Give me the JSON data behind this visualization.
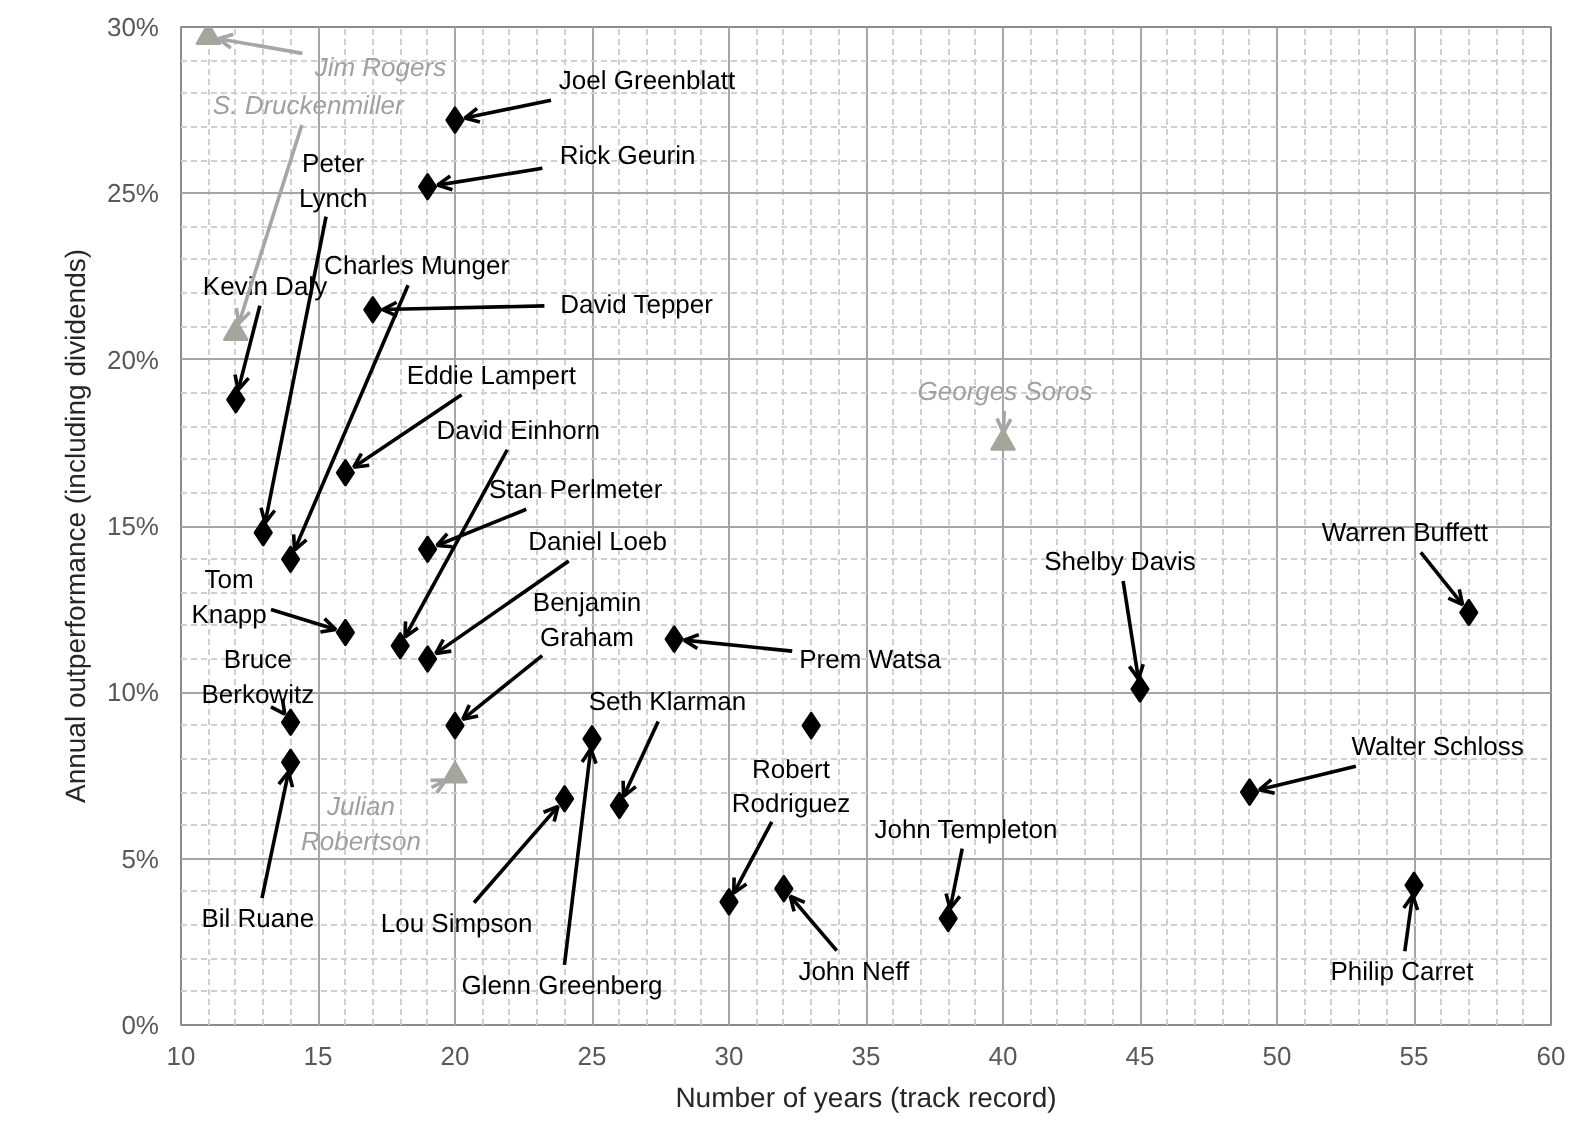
{
  "chart_data": {
    "type": "scatter",
    "xlabel": "Number of years (track record)",
    "ylabel": "Annual outperformance (including dividends)",
    "xlim": [
      10,
      60
    ],
    "ylim": [
      0,
      30
    ],
    "xticks": [
      10,
      15,
      20,
      25,
      30,
      35,
      40,
      45,
      50,
      55,
      60
    ],
    "yticks": [
      {
        "value": 0,
        "label": "0%"
      },
      {
        "value": 5,
        "label": "5%"
      },
      {
        "value": 10,
        "label": "10%"
      },
      {
        "value": 15,
        "label": "15%"
      },
      {
        "value": 20,
        "label": "20%"
      },
      {
        "value": 25,
        "label": "25%"
      },
      {
        "value": 30,
        "label": "30%"
      }
    ],
    "grid": true,
    "series": [
      {
        "color": "#000000",
        "marker": "diamond",
        "x": [
          20,
          19,
          17,
          12,
          16,
          13,
          14,
          18,
          19,
          19,
          16,
          20,
          28,
          26,
          14,
          30,
          38,
          45,
          57,
          49,
          14,
          24,
          32,
          25,
          55,
          33
        ],
        "values": [
          27.2,
          25.2,
          21.5,
          18.8,
          16.6,
          14.8,
          14.0,
          11.4,
          14.3,
          11.0,
          11.8,
          9.0,
          11.6,
          6.6,
          9.1,
          3.7,
          3.2,
          10.1,
          12.4,
          7.0,
          7.9,
          6.8,
          4.1,
          8.6,
          4.2,
          9.0
        ]
      },
      {
        "color": "#a3a69b",
        "marker": "triangle",
        "x": [
          11,
          12,
          20,
          40
        ],
        "values": [
          29.7,
          20.8,
          7.5,
          17.5
        ]
      }
    ],
    "annotations": [
      {
        "text": "Joel Greenblatt",
        "x": 20,
        "y": 27.2
      },
      {
        "text": "Rick Geurin",
        "x": 19,
        "y": 25.2
      },
      {
        "text": "David Tepper",
        "x": 17,
        "y": 21.5
      },
      {
        "text": "Kevin Daly",
        "x": 12,
        "y": 18.8
      },
      {
        "text": "Eddie Lampert",
        "x": 16,
        "y": 16.6
      },
      {
        "text": "Peter Lynch",
        "x": 13,
        "y": 14.8
      },
      {
        "text": "Charles Munger",
        "x": 14,
        "y": 14.0
      },
      {
        "text": "David Einhorn",
        "x": 18,
        "y": 11.4
      },
      {
        "text": "Stan Perlmeter",
        "x": 19,
        "y": 14.3
      },
      {
        "text": "Daniel Loeb",
        "x": 19,
        "y": 11.0
      },
      {
        "text": "Tom Knapp",
        "x": 16,
        "y": 11.8
      },
      {
        "text": "Benjamin Graham",
        "x": 20,
        "y": 9.0
      },
      {
        "text": "Prem Watsa",
        "x": 28,
        "y": 11.6
      },
      {
        "text": "Seth Klarman",
        "x": 26,
        "y": 6.6
      },
      {
        "text": "Bruce Berkowitz",
        "x": 14,
        "y": 9.1
      },
      {
        "text": "Robert Rodriguez",
        "x": 30,
        "y": 3.7
      },
      {
        "text": "John Templeton",
        "x": 38,
        "y": 3.2
      },
      {
        "text": "Shelby Davis",
        "x": 45,
        "y": 10.1
      },
      {
        "text": "Warren Buffett",
        "x": 57,
        "y": 12.4
      },
      {
        "text": "Walter Schloss",
        "x": 49,
        "y": 7.0
      },
      {
        "text": "Bil Ruane",
        "x": 14,
        "y": 7.9
      },
      {
        "text": "Lou Simpson",
        "x": 24,
        "y": 6.8
      },
      {
        "text": "John Neff",
        "x": 32,
        "y": 4.1
      },
      {
        "text": "Glenn Greenberg",
        "x": 25,
        "y": 8.6
      },
      {
        "text": "Philip Carret",
        "x": 55,
        "y": 4.2
      },
      {
        "text": "Jim Rogers",
        "x": 11,
        "y": 29.7
      },
      {
        "text": "S. Druckenmiller",
        "x": 12,
        "y": 20.8
      },
      {
        "text": "Julian Robertson",
        "x": 20,
        "y": 7.5
      },
      {
        "text": "Georges Soros",
        "x": 40,
        "y": 17.5
      }
    ]
  }
}
